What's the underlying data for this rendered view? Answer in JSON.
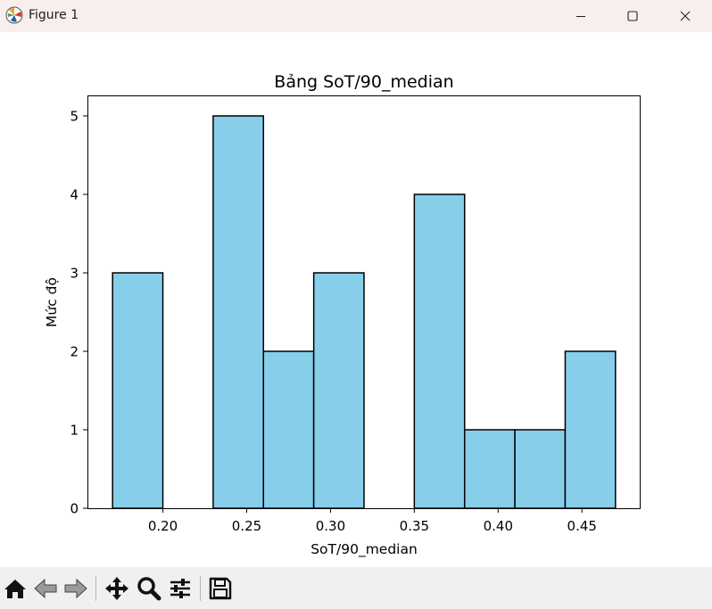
{
  "window": {
    "title": "Figure 1"
  },
  "toolbar": {
    "buttons": [
      "home-icon",
      "back-arrow-icon",
      "forward-arrow-icon",
      "pan-move-icon",
      "zoom-magnifier-icon",
      "configure-subplots-icon",
      "save-floppy-icon"
    ]
  },
  "chart_data": {
    "type": "bar",
    "title": "Bảng SoT/90_median",
    "xlabel": "SoT/90_median",
    "ylabel": "Mức độ",
    "bar_color": "#87ceeb",
    "edge_color": "#000000",
    "bins": [
      {
        "start": 0.17,
        "end": 0.2,
        "count": 3
      },
      {
        "start": 0.2,
        "end": 0.23,
        "count": 0
      },
      {
        "start": 0.23,
        "end": 0.26,
        "count": 5
      },
      {
        "start": 0.26,
        "end": 0.29,
        "count": 2
      },
      {
        "start": 0.29,
        "end": 0.32,
        "count": 3
      },
      {
        "start": 0.32,
        "end": 0.35,
        "count": 0
      },
      {
        "start": 0.35,
        "end": 0.38,
        "count": 4
      },
      {
        "start": 0.38,
        "end": 0.41,
        "count": 1
      },
      {
        "start": 0.41,
        "end": 0.44,
        "count": 1
      },
      {
        "start": 0.44,
        "end": 0.47,
        "count": 2
      }
    ],
    "xlim": [
      0.155,
      0.485
    ],
    "ylim": [
      0,
      5.25
    ],
    "xticks": [
      0.2,
      0.25,
      0.3,
      0.35,
      0.4,
      0.45
    ],
    "xtick_labels": [
      "0.20",
      "0.25",
      "0.30",
      "0.35",
      "0.40",
      "0.45"
    ],
    "yticks": [
      0,
      1,
      2,
      3,
      4,
      5
    ],
    "ytick_labels": [
      "0",
      "1",
      "2",
      "3",
      "4",
      "5"
    ],
    "grid": false,
    "legend": "none"
  }
}
